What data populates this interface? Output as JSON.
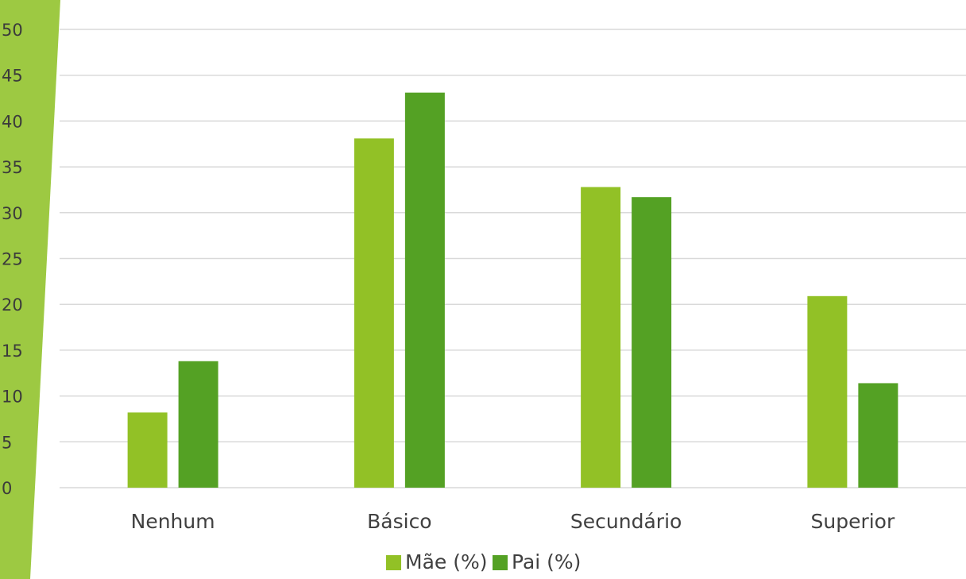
{
  "chart_data": {
    "type": "bar",
    "title": "",
    "xlabel": "",
    "ylabel": "",
    "categories": [
      "Nenhum",
      "Básico",
      "Secundário",
      "Superior"
    ],
    "series": [
      {
        "name": "Mãe (%)",
        "values": [
          8.2,
          38.1,
          32.8,
          20.9
        ],
        "color": "#92c126"
      },
      {
        "name": "Pai (%)",
        "values": [
          13.8,
          43.1,
          31.7,
          11.4
        ],
        "color": "#54a124"
      }
    ],
    "ylim": [
      0,
      50
    ],
    "yticks": [
      "0",
      "5",
      "10",
      "15",
      "20",
      "25",
      "30",
      "35",
      "40",
      "45",
      "50"
    ],
    "grid": true,
    "legend_position": "bottom",
    "decor_color": "#9dc942"
  }
}
